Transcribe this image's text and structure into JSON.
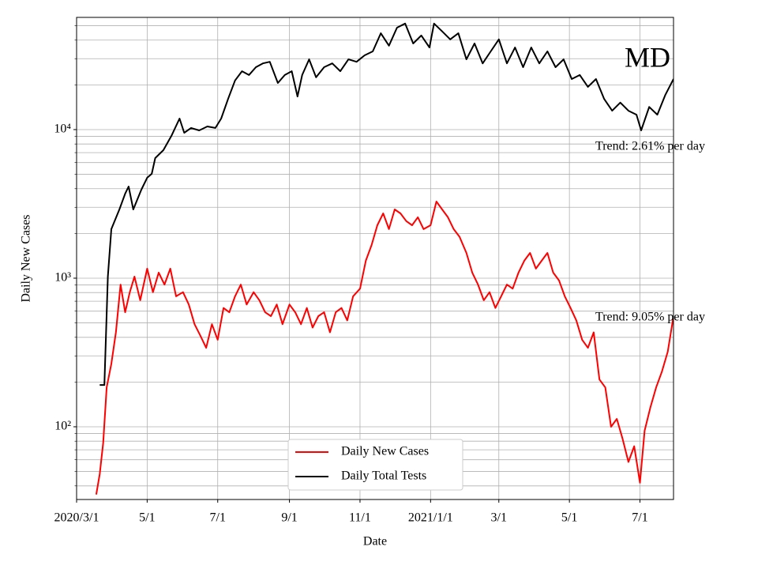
{
  "chart_data": {
    "type": "line",
    "title": "MD",
    "x_label": "Date",
    "y_label": "Daily New Cases",
    "log_y": true,
    "grid": true,
    "legend_position": "lower center",
    "annotations": [
      "Trend: 2.61% per day",
      "Trend: 9.05% per day"
    ],
    "xlim": [
      "2020-03-01",
      "2021-07-30"
    ],
    "xticks": [
      {
        "value": "2020-03-01",
        "label": "2020/3/1"
      },
      {
        "value": "2020-05-01",
        "label": "5/1"
      },
      {
        "value": "2020-07-01",
        "label": "7/1"
      },
      {
        "value": "2020-09-01",
        "label": "9/1"
      },
      {
        "value": "2020-11-01",
        "label": "11/1"
      },
      {
        "value": "2021-01-01",
        "label": "2021/1/1"
      },
      {
        "value": "2021-03-01",
        "label": "3/1"
      },
      {
        "value": "2021-05-01",
        "label": "5/1"
      },
      {
        "value": "2021-07-01",
        "label": "7/1"
      }
    ],
    "ylim": [
      32.4,
      56900
    ],
    "yticks": [
      {
        "value": 100,
        "label": "10²"
      },
      {
        "value": 1000,
        "label": "10³"
      },
      {
        "value": 10000,
        "label": "10⁴"
      }
    ],
    "yminorticks": [
      40,
      50,
      60,
      70,
      80,
      90,
      200,
      300,
      400,
      500,
      600,
      700,
      800,
      900,
      2000,
      3000,
      4000,
      5000,
      6000,
      7000,
      8000,
      9000,
      20000,
      30000,
      40000,
      50000
    ],
    "series": [
      {
        "name": "Daily New Cases",
        "color": "#ff0000",
        "x": [
          "2020-03-18",
          "2020-03-21",
          "2020-03-24",
          "2020-03-27",
          "2020-03-31",
          "2020-04-04",
          "2020-04-08",
          "2020-04-12",
          "2020-04-16",
          "2020-04-20",
          "2020-04-25",
          "2020-05-01",
          "2020-05-06",
          "2020-05-11",
          "2020-05-16",
          "2020-05-21",
          "2020-05-26",
          "2020-06-01",
          "2020-06-06",
          "2020-06-11",
          "2020-06-16",
          "2020-06-21",
          "2020-06-26",
          "2020-07-01",
          "2020-07-06",
          "2020-07-11",
          "2020-07-16",
          "2020-07-21",
          "2020-07-26",
          "2020-08-01",
          "2020-08-06",
          "2020-08-11",
          "2020-08-16",
          "2020-08-21",
          "2020-08-26",
          "2020-09-01",
          "2020-09-06",
          "2020-09-11",
          "2020-09-16",
          "2020-09-21",
          "2020-09-26",
          "2020-10-01",
          "2020-10-06",
          "2020-10-11",
          "2020-10-16",
          "2020-10-21",
          "2020-10-26",
          "2020-11-01",
          "2020-11-06",
          "2020-11-11",
          "2020-11-16",
          "2020-11-21",
          "2020-11-26",
          "2020-12-01",
          "2020-12-06",
          "2020-12-11",
          "2020-12-16",
          "2020-12-21",
          "2020-12-26",
          "2021-01-01",
          "2021-01-06",
          "2021-01-11",
          "2021-01-16",
          "2021-01-21",
          "2021-01-26",
          "2021-02-01",
          "2021-02-06",
          "2021-02-11",
          "2021-02-16",
          "2021-02-21",
          "2021-02-26",
          "2021-03-03",
          "2021-03-08",
          "2021-03-13",
          "2021-03-18",
          "2021-03-23",
          "2021-03-28",
          "2021-04-02",
          "2021-04-07",
          "2021-04-12",
          "2021-04-17",
          "2021-04-22",
          "2021-04-27",
          "2021-05-02",
          "2021-05-07",
          "2021-05-12",
          "2021-05-17",
          "2021-05-22",
          "2021-05-27",
          "2021-06-01",
          "2021-06-06",
          "2021-06-11",
          "2021-06-16",
          "2021-06-21",
          "2021-06-26",
          "2021-07-01",
          "2021-07-05",
          "2021-07-10",
          "2021-07-15",
          "2021-07-20",
          "2021-07-25",
          "2021-07-30"
        ],
        "values": [
          35,
          48,
          78,
          184,
          265,
          432,
          905,
          590,
          805,
          1025,
          710,
          1160,
          805,
          1090,
          905,
          1160,
          755,
          805,
          665,
          490,
          410,
          340,
          490,
          385,
          630,
          590,
          755,
          905,
          665,
          805,
          710,
          590,
          555,
          665,
          490,
          665,
          590,
          490,
          630,
          465,
          555,
          590,
          432,
          590,
          630,
          520,
          755,
          850,
          1310,
          1670,
          2270,
          2730,
          2140,
          2900,
          2730,
          2420,
          2270,
          2570,
          2140,
          2270,
          3280,
          2900,
          2570,
          2140,
          1900,
          1480,
          1090,
          905,
          710,
          805,
          630,
          755,
          905,
          850,
          1090,
          1310,
          1480,
          1160,
          1310,
          1480,
          1090,
          965,
          755,
          630,
          520,
          385,
          340,
          432,
          208,
          184,
          100,
          113,
          83,
          58,
          74,
          42,
          94,
          135,
          184,
          235,
          320,
          555
        ]
      },
      {
        "name": "Daily Total Tests",
        "color": "#000000",
        "x": [
          "2020-03-21",
          "2020-03-25",
          "2020-03-28",
          "2020-03-31",
          "2020-04-07",
          "2020-04-12",
          "2020-04-15",
          "2020-04-19",
          "2020-04-26",
          "2020-05-01",
          "2020-05-05",
          "2020-05-08",
          "2020-05-15",
          "2020-05-22",
          "2020-05-29",
          "2020-06-02",
          "2020-06-08",
          "2020-06-15",
          "2020-06-22",
          "2020-06-29",
          "2020-07-04",
          "2020-07-10",
          "2020-07-16",
          "2020-07-22",
          "2020-07-28",
          "2020-08-03",
          "2020-08-09",
          "2020-08-15",
          "2020-08-22",
          "2020-08-28",
          "2020-09-03",
          "2020-09-08",
          "2020-09-12",
          "2020-09-18",
          "2020-09-24",
          "2020-10-01",
          "2020-10-08",
          "2020-10-15",
          "2020-10-22",
          "2020-10-29",
          "2020-11-05",
          "2020-11-12",
          "2020-11-19",
          "2020-11-26",
          "2020-12-03",
          "2020-12-10",
          "2020-12-17",
          "2020-12-24",
          "2020-12-31",
          "2021-01-04",
          "2021-01-11",
          "2021-01-18",
          "2021-01-25",
          "2021-02-01",
          "2021-02-08",
          "2021-02-15",
          "2021-02-22",
          "2021-03-01",
          "2021-03-08",
          "2021-03-15",
          "2021-03-22",
          "2021-03-29",
          "2021-04-05",
          "2021-04-12",
          "2021-04-19",
          "2021-04-26",
          "2021-05-03",
          "2021-05-10",
          "2021-05-17",
          "2021-05-24",
          "2021-05-31",
          "2021-06-07",
          "2021-06-14",
          "2021-06-21",
          "2021-06-28",
          "2021-07-02",
          "2021-07-09",
          "2021-07-16",
          "2021-07-23",
          "2021-07-30"
        ],
        "values": [
          191,
          191,
          1025,
          2140,
          2900,
          3700,
          4140,
          2900,
          3940,
          4740,
          5040,
          6430,
          7270,
          9070,
          11860,
          9520,
          10250,
          9880,
          10500,
          10250,
          11860,
          16100,
          21400,
          24700,
          23300,
          26300,
          27900,
          28600,
          20600,
          23300,
          24700,
          16700,
          23300,
          29700,
          22500,
          26300,
          27900,
          24700,
          29700,
          28600,
          31600,
          33600,
          44500,
          36700,
          48500,
          51700,
          38000,
          43000,
          35700,
          51700,
          45800,
          40500,
          44500,
          29700,
          38000,
          27900,
          33600,
          40500,
          27900,
          35700,
          26300,
          35700,
          27900,
          33600,
          26300,
          29700,
          21900,
          23300,
          19400,
          21900,
          16100,
          13400,
          15200,
          13400,
          12600,
          9880,
          14200,
          12600,
          17150,
          21900
        ]
      }
    ]
  }
}
